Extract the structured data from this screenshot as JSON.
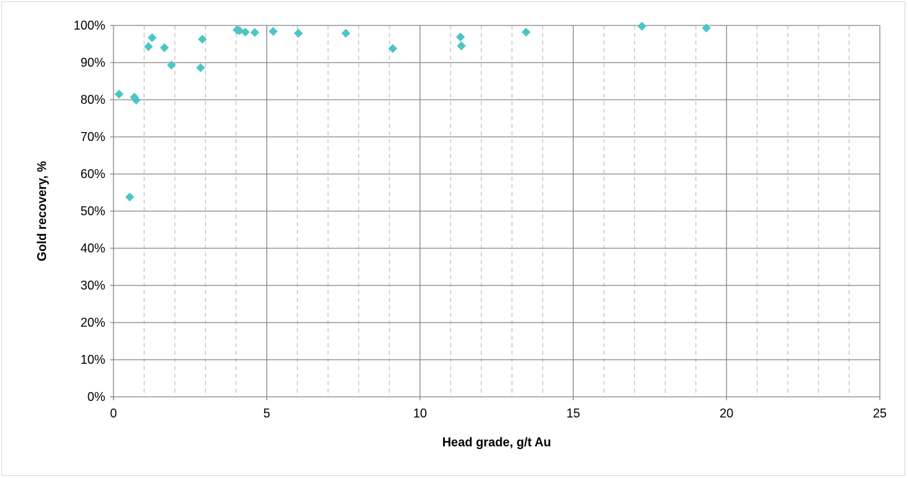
{
  "chart_data": {
    "type": "scatter",
    "title": "",
    "xlabel": "Head grade, g/t Au",
    "ylabel": "Gold recovery, %",
    "xlim": [
      0,
      25
    ],
    "ylim": [
      0,
      100
    ],
    "x_major_ticks": [
      0,
      5,
      10,
      15,
      20,
      25
    ],
    "x_tick_labels": [
      "0",
      "5",
      "10",
      "15",
      "20",
      "25"
    ],
    "x_minor_gridlines": [
      1,
      2,
      3,
      4,
      6,
      7,
      8,
      9,
      11,
      12,
      13,
      14,
      16,
      17,
      18,
      19,
      21,
      22,
      23,
      24
    ],
    "y_major_ticks": [
      0,
      10,
      20,
      30,
      40,
      50,
      60,
      70,
      80,
      90,
      100
    ],
    "y_tick_labels": [
      "0%",
      "10%",
      "20%",
      "30%",
      "40%",
      "50%",
      "60%",
      "70%",
      "80%",
      "90%",
      "100%"
    ],
    "grid": {
      "major": true,
      "minor_x_dashed": true
    },
    "legend": "none",
    "marker": "diamond",
    "colors": {
      "marker": "#4bc6c6",
      "grid_major": "#8c8c8c",
      "grid_minor": "#bfbfbf",
      "axis": "#8c8c8c"
    },
    "series": [
      {
        "points": [
          {
            "x": 0.18,
            "y": 81.5
          },
          {
            "x": 0.53,
            "y": 53.8
          },
          {
            "x": 0.68,
            "y": 80.7
          },
          {
            "x": 0.74,
            "y": 79.9
          },
          {
            "x": 1.14,
            "y": 94.3
          },
          {
            "x": 1.26,
            "y": 96.7
          },
          {
            "x": 1.66,
            "y": 94.0
          },
          {
            "x": 1.89,
            "y": 89.3
          },
          {
            "x": 2.84,
            "y": 88.6
          },
          {
            "x": 2.9,
            "y": 96.3
          },
          {
            "x": 4.03,
            "y": 98.8
          },
          {
            "x": 4.11,
            "y": 98.6
          },
          {
            "x": 4.3,
            "y": 98.2
          },
          {
            "x": 4.61,
            "y": 98.1
          },
          {
            "x": 5.21,
            "y": 98.4
          },
          {
            "x": 6.03,
            "y": 97.9
          },
          {
            "x": 7.58,
            "y": 97.9
          },
          {
            "x": 9.11,
            "y": 93.8
          },
          {
            "x": 11.32,
            "y": 96.9
          },
          {
            "x": 11.35,
            "y": 94.5
          },
          {
            "x": 13.46,
            "y": 98.2
          },
          {
            "x": 17.24,
            "y": 99.8
          },
          {
            "x": 19.34,
            "y": 99.3
          }
        ]
      }
    ]
  }
}
